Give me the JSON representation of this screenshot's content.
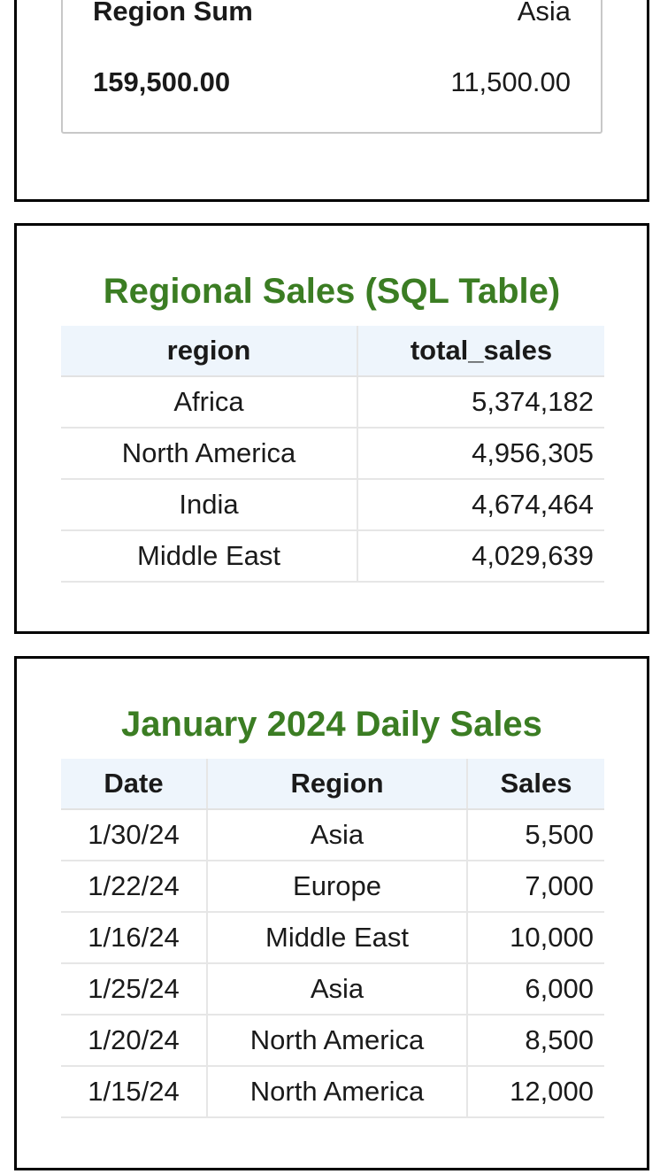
{
  "summary": {
    "header_label": "Region Sum",
    "header_value": "Asia",
    "total_label": "159,500.00",
    "total_value": "11,500.00"
  },
  "regional": {
    "title": "Regional Sales (SQL Table)",
    "columns": [
      "region",
      "total_sales"
    ],
    "rows": [
      {
        "region": "Africa",
        "total_sales": "5,374,182"
      },
      {
        "region": "North America",
        "total_sales": "4,956,305"
      },
      {
        "region": "India",
        "total_sales": "4,674,464"
      },
      {
        "region": "Middle East",
        "total_sales": "4,029,639"
      }
    ]
  },
  "daily": {
    "title": "January 2024 Daily Sales",
    "columns": [
      "Date",
      "Region",
      "Sales"
    ],
    "rows": [
      {
        "date": "1/30/24",
        "region": "Asia",
        "sales": "5,500"
      },
      {
        "date": "1/22/24",
        "region": "Europe",
        "sales": "7,000"
      },
      {
        "date": "1/16/24",
        "region": "Middle East",
        "sales": "10,000"
      },
      {
        "date": "1/25/24",
        "region": "Asia",
        "sales": "6,000"
      },
      {
        "date": "1/20/24",
        "region": "North America",
        "sales": "8,500"
      },
      {
        "date": "1/15/24",
        "region": "North America",
        "sales": "12,000"
      }
    ]
  },
  "colors": {
    "title_green": "#3b7d23",
    "header_bg": "#eef5fc",
    "card_border": "#000000"
  }
}
